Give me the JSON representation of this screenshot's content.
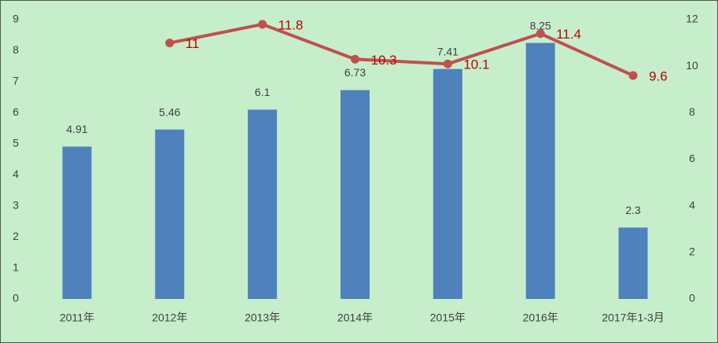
{
  "chart_data": {
    "type": "bar",
    "categories": [
      "2011年",
      "2012年",
      "2013年",
      "2014年",
      "2015年",
      "2016年",
      "2017年1-3月"
    ],
    "series": [
      {
        "type": "bar",
        "color": "#4f81bd",
        "values": [
          4.91,
          5.46,
          6.1,
          6.73,
          7.41,
          8.25,
          2.3
        ]
      },
      {
        "type": "line",
        "axis": "y2",
        "color": "#c0504d",
        "values": [
          null,
          11,
          11.8,
          10.3,
          10.1,
          11.4,
          9.6
        ]
      }
    ],
    "ylim": [
      0,
      9
    ],
    "yticks": [
      0,
      1,
      2,
      3,
      4,
      5,
      6,
      7,
      8,
      9
    ],
    "y2lim": [
      0,
      12
    ],
    "y2ticks": [
      0,
      2,
      4,
      6,
      8,
      10,
      12
    ],
    "grid": false
  }
}
